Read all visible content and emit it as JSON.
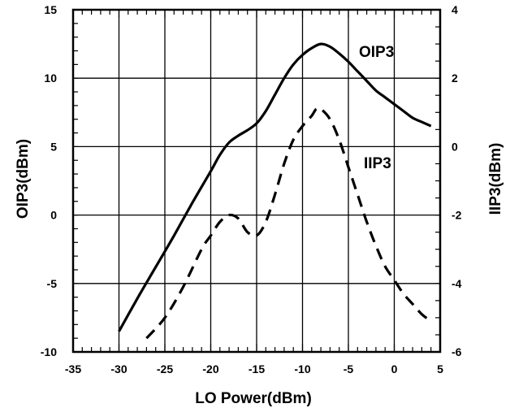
{
  "chart_data": {
    "type": "line",
    "xlabel": "LO Power(dBm)",
    "ylabel_left": "OIP3(dBm)",
    "ylabel_right": "IIP3(dBm)",
    "xlim": [
      -35,
      5
    ],
    "ylim_left": [
      -10,
      15
    ],
    "ylim_right": [
      -6,
      4
    ],
    "x_ticks": [
      "-35",
      "-30",
      "-25",
      "-20",
      "-15",
      "-10",
      "-5",
      "0",
      "5"
    ],
    "y_left_ticks": [
      "-10",
      "-5",
      "0",
      "5",
      "10",
      "15"
    ],
    "y_right_ticks": [
      "-6",
      "-4",
      "-2",
      "0",
      "2",
      "4"
    ],
    "grid": true,
    "series": [
      {
        "name": "OIP3",
        "axis": "left",
        "style": "solid",
        "x": [
          -30,
          -28,
          -26,
          -24,
          -22,
          -20,
          -19,
          -18,
          -17,
          -16,
          -15,
          -14,
          -13,
          -12,
          -11,
          -10,
          -9,
          -8,
          -7,
          -6,
          -5,
          -4,
          -3,
          -2,
          -1,
          0,
          1,
          2,
          3,
          4
        ],
        "y": [
          -8.5,
          -6.1,
          -3.8,
          -1.5,
          0.9,
          3.2,
          4.4,
          5.3,
          5.8,
          6.2,
          6.7,
          7.6,
          8.8,
          10.0,
          11.0,
          11.7,
          12.2,
          12.5,
          12.3,
          11.8,
          11.2,
          10.5,
          9.8,
          9.1,
          8.6,
          8.1,
          7.6,
          7.1,
          6.8,
          6.5
        ]
      },
      {
        "name": "IIP3",
        "axis": "right",
        "style": "dashed",
        "x": [
          -27,
          -25,
          -23,
          -21,
          -20,
          -19,
          -18,
          -17,
          -16,
          -15,
          -14,
          -13,
          -12,
          -11,
          -10,
          -9,
          -8.5,
          -8,
          -7,
          -6,
          -5,
          -4,
          -3,
          -2,
          -1,
          0,
          1,
          2,
          3,
          4
        ],
        "y": [
          -5.6,
          -5.0,
          -4.1,
          -3.0,
          -2.6,
          -2.2,
          -2.0,
          -2.1,
          -2.5,
          -2.6,
          -2.2,
          -1.4,
          -0.5,
          0.2,
          0.6,
          0.9,
          1.1,
          1.1,
          0.8,
          0.2,
          -0.6,
          -1.4,
          -2.2,
          -2.9,
          -3.5,
          -3.9,
          -4.3,
          -4.6,
          -4.9,
          -5.1
        ]
      }
    ],
    "annotations": [
      "OIP3",
      "IIP3"
    ]
  },
  "colors": {
    "line": "#000000",
    "grid": "#000000",
    "background": "#ffffff"
  }
}
